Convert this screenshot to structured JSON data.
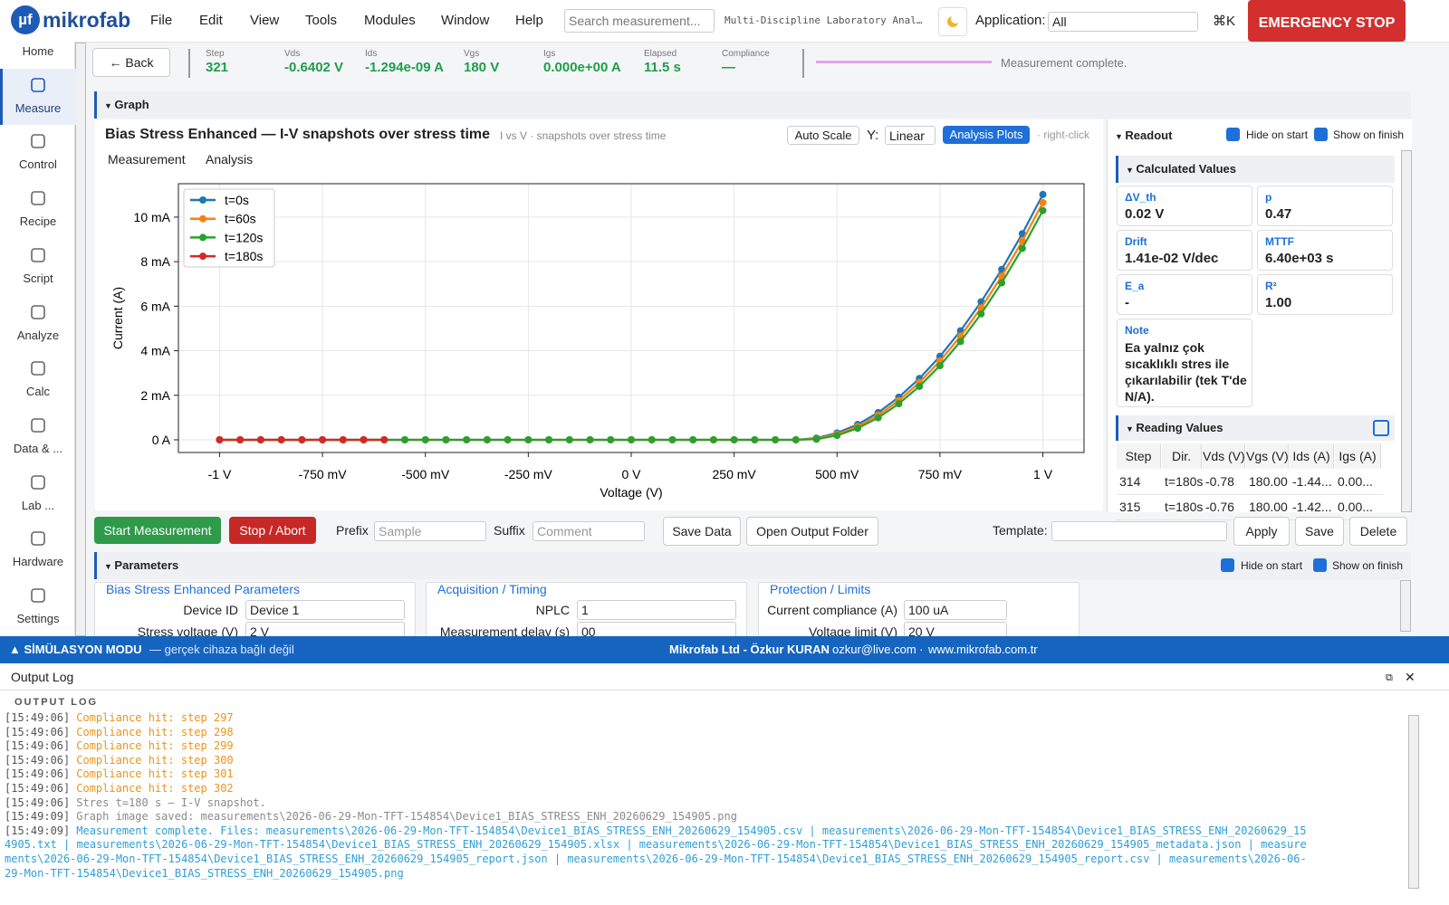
{
  "menu": {
    "logo_mark": "µf",
    "logo": "mikrofab",
    "items": [
      "File",
      "Edit",
      "View",
      "Tools",
      "Modules",
      "Window",
      "Help"
    ],
    "search_placeholder": "Search measurement...",
    "app_title": "Multi-Discipline Laboratory Anal…",
    "application_label": "Application:",
    "application_value": "All",
    "shortcut": "⌘K",
    "emergency": "EMERGENCY STOP"
  },
  "sidebar": {
    "items": [
      "Home",
      "Measure",
      "Control",
      "Recipe",
      "Script",
      "Analyze",
      "Calc",
      "Data & ...",
      "Lab ...",
      "Hardware",
      "Settings"
    ],
    "active": "Measure"
  },
  "status": {
    "back": "← Back",
    "stats": [
      {
        "label": "Step",
        "value": "321"
      },
      {
        "label": "Vds",
        "value": "-0.6402 V"
      },
      {
        "label": "Ids",
        "value": "-1.294e-09 A"
      },
      {
        "label": "Vgs",
        "value": "180 V"
      },
      {
        "label": "Igs",
        "value": "0.000e+00 A"
      },
      {
        "label": "Elapsed",
        "value": "11.5 s"
      },
      {
        "label": "Compliance",
        "value": "—"
      }
    ],
    "message": "Measurement complete."
  },
  "graph": {
    "header": "Graph",
    "subtitle": "I vs V · snapshots over stress time",
    "auto_scale": "Auto Scale",
    "y_label": "Y:",
    "y_scale": "Linear",
    "analysis_plots": "Analysis Plots",
    "hint": "· right-click",
    "tabs": [
      "Measurement",
      "Analysis"
    ]
  },
  "chart_data": {
    "type": "line",
    "title": "Bias Stress Enhanced — I-V snapshots over stress time",
    "xlabel": "Voltage (V)",
    "ylabel": "Current (A)",
    "grid": true,
    "legend": "upper left",
    "x": [
      -1,
      -0.95,
      -0.9,
      -0.85,
      -0.8,
      -0.75,
      -0.7,
      -0.65,
      -0.6,
      -0.55,
      -0.5,
      -0.45,
      -0.4,
      -0.35,
      -0.3,
      -0.25,
      -0.2,
      -0.15,
      -0.1,
      -0.05,
      0,
      0.05,
      0.1,
      0.15,
      0.2,
      0.25,
      0.3,
      0.35,
      0.4,
      0.45,
      0.5,
      0.55,
      0.6,
      0.65,
      0.7,
      0.75,
      0.8,
      0.85,
      0.9,
      0.95,
      1
    ],
    "series": [
      {
        "name": "t=0s",
        "color": "#1f77b4",
        "values": [
          0,
          0,
          0,
          0,
          0,
          0,
          0,
          0,
          0,
          0,
          0,
          0,
          0,
          0,
          0,
          0,
          0,
          0,
          0,
          0,
          0,
          0,
          0,
          0,
          0,
          0,
          0,
          0,
          0,
          7.7e-05,
          0.000306,
          0.000689,
          0.001224,
          0.001913,
          0.002754,
          0.003749,
          0.004896,
          0.006197,
          0.00765,
          0.009257,
          0.011016
        ]
      },
      {
        "name": "t=60s",
        "color": "#ff7f0e",
        "values": [
          0,
          0,
          0,
          0,
          0,
          0,
          0,
          0,
          0,
          0,
          0,
          0,
          0,
          0,
          0,
          0,
          0,
          0,
          0,
          0,
          0,
          0,
          0,
          0,
          0,
          0,
          0,
          0,
          0,
          4.9e-05,
          0.000248,
          0.0006,
          0.001105,
          0.001763,
          0.002573,
          0.003537,
          0.004654,
          0.005924,
          0.007347,
          0.008923,
          0.010652
        ]
      },
      {
        "name": "t=120s",
        "color": "#2ca02c",
        "values": [
          0,
          0,
          0,
          0,
          0,
          0,
          0,
          0,
          0,
          0,
          0,
          0,
          0,
          0,
          0,
          0,
          0,
          0,
          0,
          0,
          0,
          0,
          0,
          0,
          0,
          0,
          0,
          0,
          0,
          2.8e-05,
          0.000196,
          0.000517,
          0.000991,
          0.001619,
          0.002399,
          0.003332,
          0.004419,
          0.005658,
          0.00705,
          0.008596,
          0.010294
        ]
      },
      {
        "name": "t=180s",
        "color": "#d62728",
        "values": [
          0,
          0,
          0,
          0,
          0,
          0,
          0,
          0,
          0,
          null,
          null,
          null,
          null,
          null,
          null,
          null,
          null,
          null,
          null,
          null,
          null,
          null,
          null,
          null,
          null,
          null,
          null,
          null,
          null,
          null,
          null,
          null,
          null,
          null,
          null,
          null,
          null,
          null,
          null,
          null,
          null
        ]
      }
    ],
    "xlim": [
      -1.1,
      1.1
    ],
    "xticks": [
      {
        "value": -1,
        "label": "-1 V"
      },
      {
        "value": -0.75,
        "label": "-750 mV"
      },
      {
        "value": -0.5,
        "label": "-500 mV"
      },
      {
        "value": -0.25,
        "label": "-250 mV"
      },
      {
        "value": 0,
        "label": "0 V"
      },
      {
        "value": 0.25,
        "label": "250 mV"
      },
      {
        "value": 0.5,
        "label": "500 mV"
      },
      {
        "value": 0.75,
        "label": "750 mV"
      },
      {
        "value": 1,
        "label": "1 V"
      }
    ],
    "ylim": [
      -0.00057,
      0.0115
    ],
    "yticks": [
      {
        "value": 0,
        "label": "0 A"
      },
      {
        "value": 0.002,
        "label": "2 mA"
      },
      {
        "value": 0.004,
        "label": "4 mA"
      },
      {
        "value": 0.006,
        "label": "6 mA"
      },
      {
        "value": 0.008,
        "label": "8 mA"
      },
      {
        "value": 0.01,
        "label": "10 mA"
      }
    ]
  },
  "readout": {
    "header": "Readout",
    "hide_on_start": "Hide on start",
    "show_on_finish": "Show on finish",
    "calculated_header": "Calculated Values",
    "cards": [
      {
        "label": "ΔV_th",
        "value": "0.02 V"
      },
      {
        "label": "p",
        "value": "0.47"
      },
      {
        "label": "Drift",
        "value": "1.41e-02 V/dec"
      },
      {
        "label": "MTTF",
        "value": "6.40e+03 s"
      },
      {
        "label": "E_a",
        "value": "-"
      },
      {
        "label": "R²",
        "value": "1.00"
      }
    ],
    "note": {
      "label": "Note",
      "text": "Ea yalnız çok sıcaklıklı stres ile çıkarılabilir (tek T'de N/A)."
    },
    "reading_header": "Reading Values",
    "table": {
      "headers": [
        "Step",
        "Dir.",
        "Vds (V)",
        "Vgs (V)",
        "Ids (A)",
        "Igs (A)"
      ],
      "rows": [
        [
          "314",
          "t=180s",
          "-0.78",
          "180.00",
          "-1.44...",
          "0.00..."
        ],
        [
          "315",
          "t=180s",
          "-0.76",
          "180.00",
          "-1.42...",
          "0.00..."
        ]
      ]
    }
  },
  "actions": {
    "start": "Start Measurement",
    "stop": "Stop / Abort",
    "prefix_label": "Prefix",
    "prefix_placeholder": "Sample",
    "suffix_label": "Suffix",
    "suffix_placeholder": "Comment",
    "save_data": "Save Data",
    "open_folder": "Open Output Folder",
    "template_label": "Template:",
    "apply": "Apply",
    "save": "Save",
    "delete": "Delete"
  },
  "parameters": {
    "header": "Parameters",
    "hide_on_start": "Hide on start",
    "show_on_finish": "Show on finish",
    "groups": [
      {
        "title": "Bias Stress Enhanced Parameters",
        "fields": [
          {
            "label": "Device ID",
            "value": "Device 1"
          },
          {
            "label": "Stress voltage (V)",
            "value": "2 V"
          }
        ]
      },
      {
        "title": "Acquisition / Timing",
        "fields": [
          {
            "label": "NPLC",
            "value": "1"
          },
          {
            "label": "Measurement delay (s)",
            "value": "00"
          }
        ]
      },
      {
        "title": "Protection / Limits",
        "fields": [
          {
            "label": "Current compliance (A)",
            "value": "100 uA"
          },
          {
            "label": "Voltage limit (V)",
            "value": "20 V"
          }
        ]
      }
    ]
  },
  "footer": {
    "mode": "▲ SİMÜLASYON MODU",
    "mode_note": "— gerçek cihaza bağlı değil",
    "company": "Mikrofab Ltd - Özkur KURAN",
    "sep": "·",
    "email": "ozkur@live.com",
    "sep2": "·",
    "web": "www.mikrofab.com.tr"
  },
  "log": {
    "title": "Output Log",
    "subtitle": "OUTPUT LOG",
    "lines": [
      {
        "time": "[15:49:06]",
        "text": "Compliance hit: step 297",
        "level": "warn"
      },
      {
        "time": "[15:49:06]",
        "text": "Compliance hit: step 298",
        "level": "warn"
      },
      {
        "time": "[15:49:06]",
        "text": "Compliance hit: step 299",
        "level": "warn"
      },
      {
        "time": "[15:49:06]",
        "text": "Compliance hit: step 300",
        "level": "warn"
      },
      {
        "time": "[15:49:06]",
        "text": "Compliance hit: step 301",
        "level": "warn"
      },
      {
        "time": "[15:49:06]",
        "text": "Compliance hit: step 302",
        "level": "warn"
      },
      {
        "time": "[15:49:06]",
        "text": "Stres t=180 s — I-V snapshot.",
        "level": "debug"
      },
      {
        "time": "[15:49:09]",
        "text": "Graph image saved: measurements\\2026-06-29-Mon-TFT-154854\\Device1_BIAS_STRESS_ENH_20260629_154905.png",
        "level": "debug"
      },
      {
        "time": "[15:49:09]",
        "text": "Measurement complete. Files: measurements\\2026-06-29-Mon-TFT-154854\\Device1_BIAS_STRESS_ENH_20260629_154905.csv | measurements\\2026-06-29-Mon-TFT-154854\\Device1_BIAS_STRESS_ENH_20260629_154905.txt | measurements\\2026-06-29-Mon-TFT-154854\\Device1_BIAS_STRESS_ENH_20260629_154905.xlsx | measurements\\2026-06-29-Mon-TFT-154854\\Device1_BIAS_STRESS_ENH_20260629_154905_metadata.json | measurements\\2026-06-29-Mon-TFT-154854\\Device1_BIAS_STRESS_ENH_20260629_154905_report.json | measurements\\2026-06-29-Mon-TFT-154854\\Device1_BIAS_STRESS_ENH_20260629_154905_report.csv | measurements\\2026-06-29-Mon-TFT-154854\\Device1_BIAS_STRESS_ENH_20260629_154905.png",
        "level": "info"
      }
    ]
  }
}
